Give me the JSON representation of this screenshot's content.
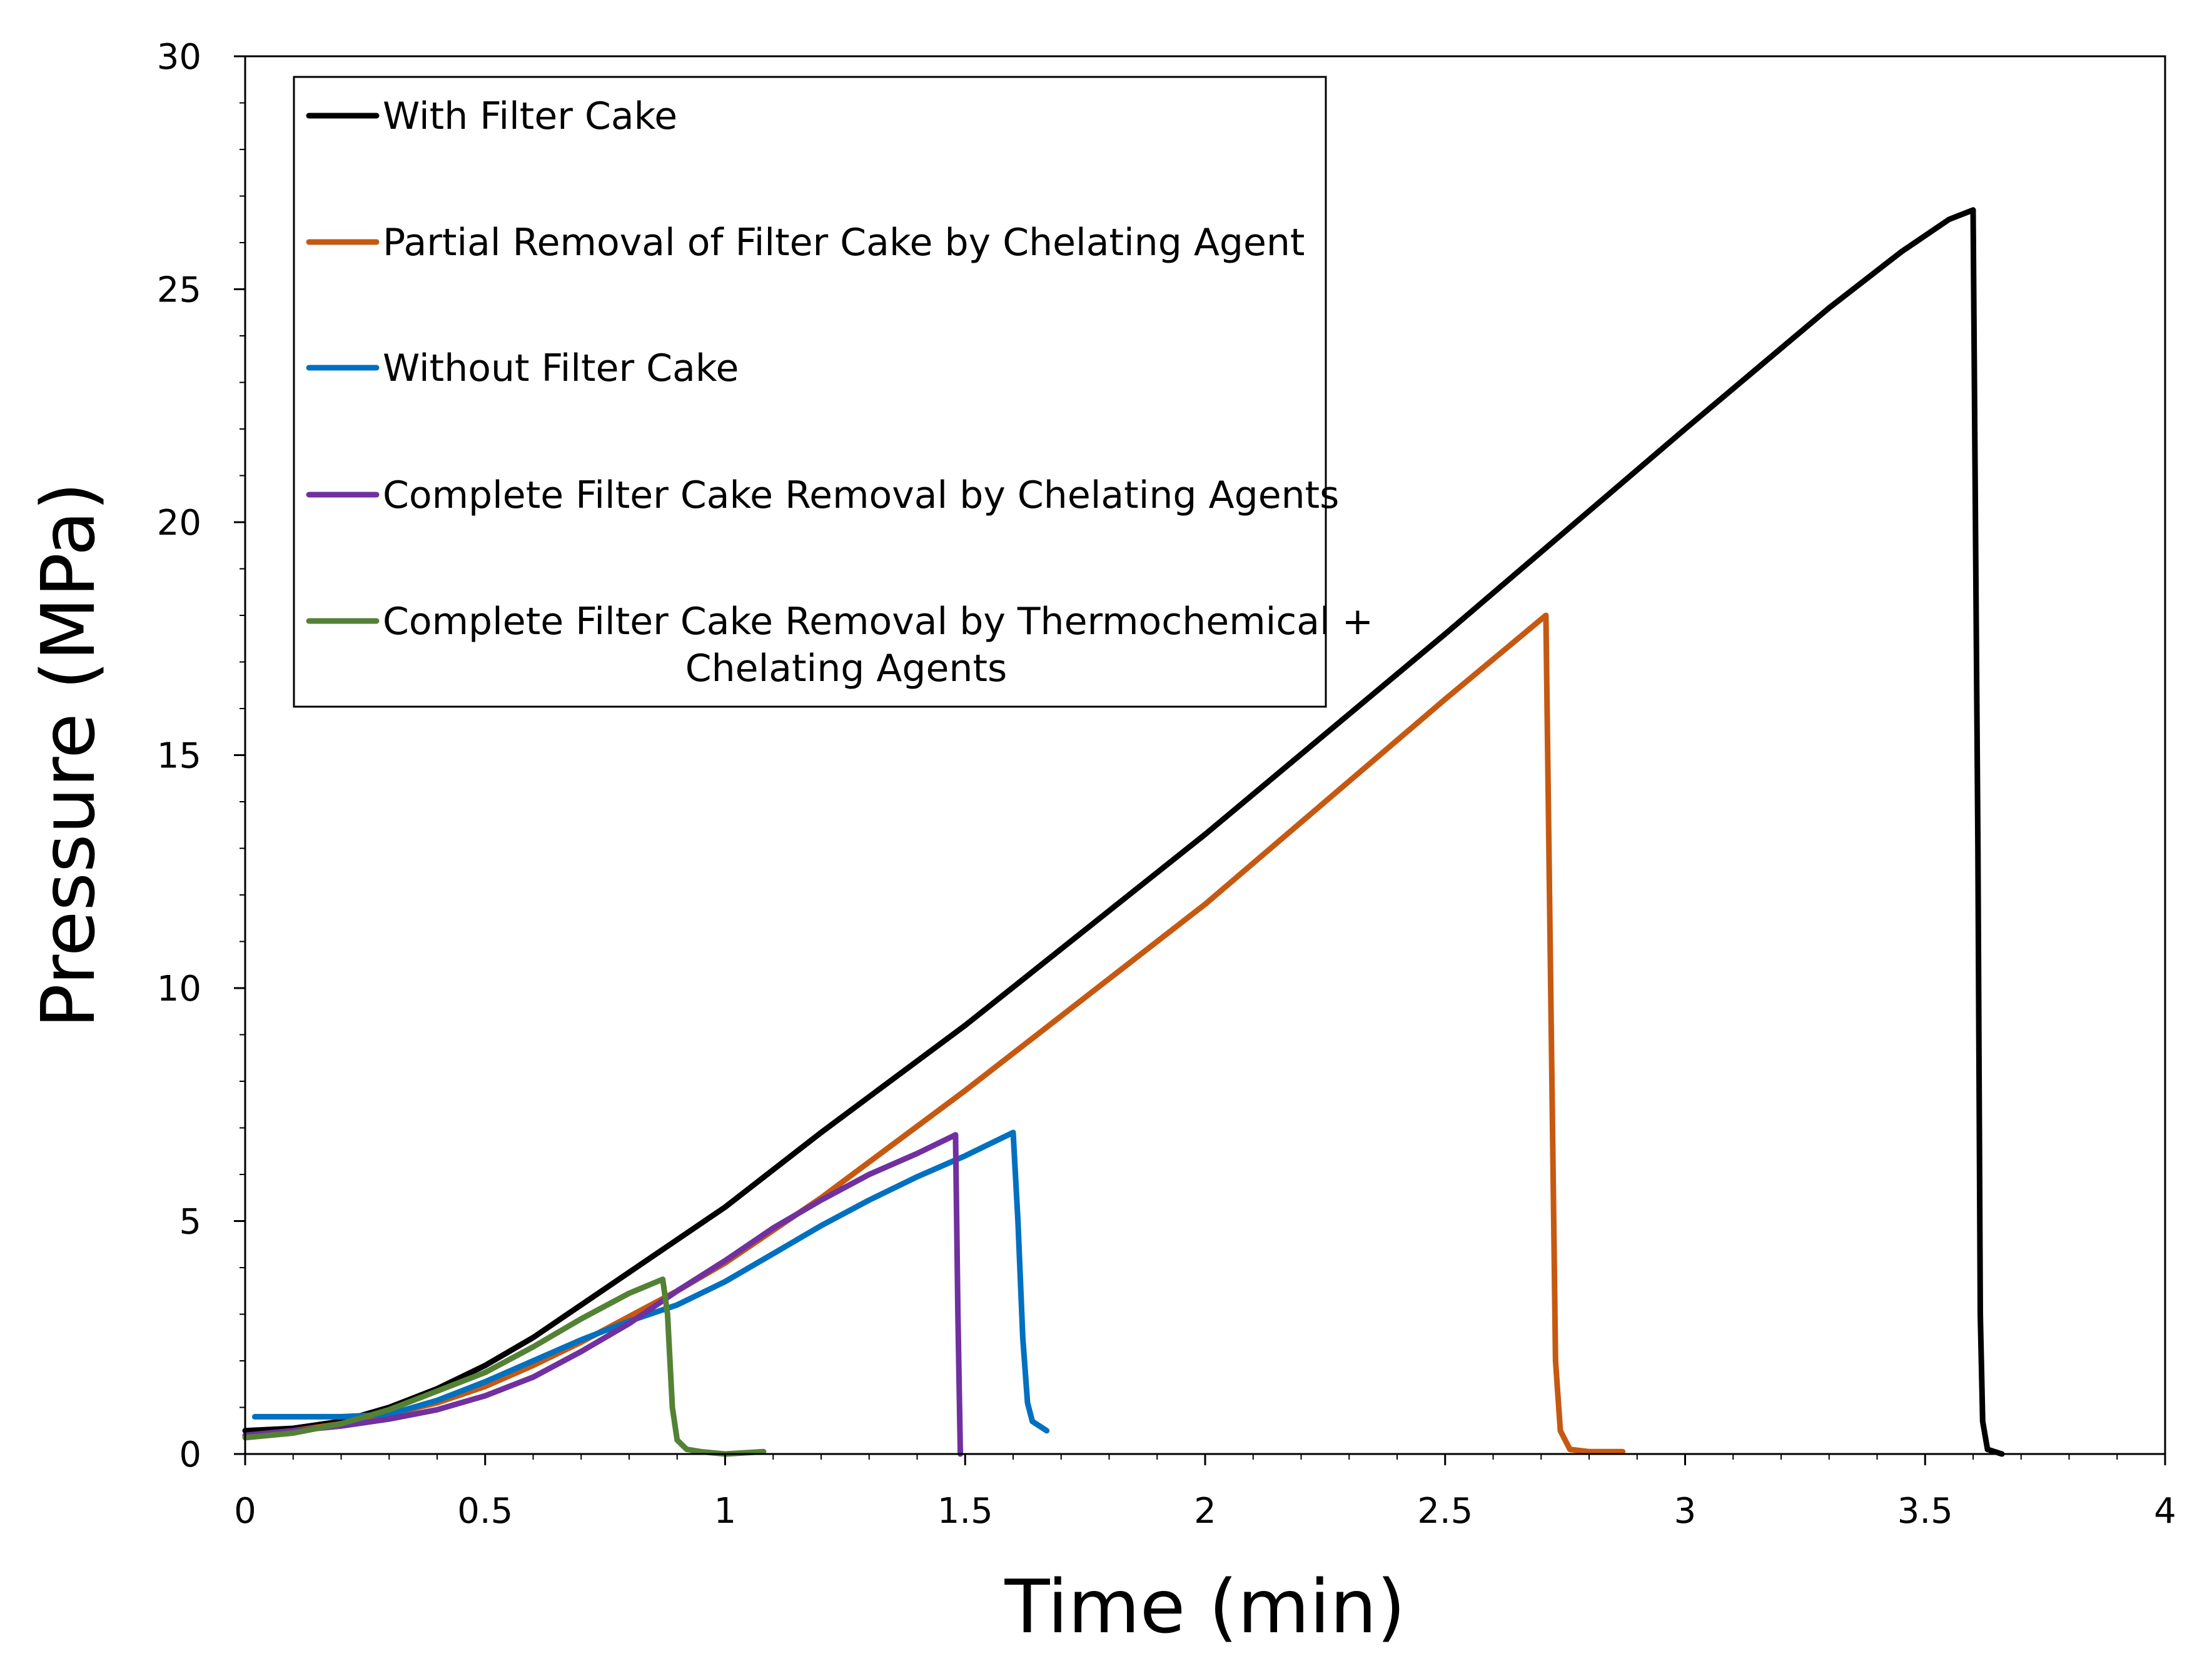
{
  "chart_data": {
    "type": "line",
    "title": "",
    "xlabel": "Time (min)",
    "ylabel": "Pressure (MPa)",
    "xlim": [
      0,
      4
    ],
    "ylim": [
      0,
      30
    ],
    "x_ticks": [
      0,
      0.5,
      1,
      1.5,
      2,
      2.5,
      3,
      3.5,
      4
    ],
    "x_tick_labels": [
      "0",
      "0.5",
      "1",
      "1.5",
      "2",
      "2.5",
      "3",
      "3.5",
      "4"
    ],
    "y_ticks": [
      0,
      5,
      10,
      15,
      20,
      25,
      30
    ],
    "y_tick_labels": [
      "0",
      "5",
      "10",
      "15",
      "20",
      "25",
      "30"
    ],
    "grid": false,
    "legend_position": "top-left",
    "series": [
      {
        "name": "With Filter Cake",
        "color": "#000000",
        "x": [
          0.0,
          0.1,
          0.2,
          0.3,
          0.4,
          0.5,
          0.6,
          0.7,
          0.8,
          0.9,
          1.0,
          1.2,
          1.5,
          2.0,
          2.5,
          3.0,
          3.3,
          3.45,
          3.55,
          3.6,
          3.61,
          3.615,
          3.62,
          3.63,
          3.66
        ],
        "y": [
          0.5,
          0.55,
          0.7,
          1.0,
          1.4,
          1.9,
          2.5,
          3.2,
          3.9,
          4.6,
          5.3,
          6.9,
          9.2,
          13.3,
          17.6,
          22.0,
          24.6,
          25.8,
          26.5,
          26.7,
          13.0,
          3.0,
          0.7,
          0.1,
          0.0
        ]
      },
      {
        "name": "Partial Removal of Filter Cake by Chelating Agent",
        "color": "#C65911",
        "x": [
          0.0,
          0.1,
          0.2,
          0.3,
          0.4,
          0.5,
          0.6,
          0.7,
          0.8,
          0.9,
          1.0,
          1.2,
          1.5,
          2.0,
          2.5,
          2.71,
          2.72,
          2.73,
          2.74,
          2.76,
          2.8,
          2.87
        ],
        "y": [
          0.4,
          0.5,
          0.65,
          0.85,
          1.1,
          1.45,
          1.9,
          2.4,
          2.95,
          3.5,
          4.1,
          5.5,
          7.8,
          11.8,
          16.2,
          18.0,
          10.0,
          2.0,
          0.5,
          0.1,
          0.05,
          0.05
        ]
      },
      {
        "name": "Without Filter Cake",
        "color": "#0070C0",
        "x": [
          0.02,
          0.1,
          0.2,
          0.3,
          0.4,
          0.5,
          0.6,
          0.7,
          0.8,
          0.9,
          1.0,
          1.1,
          1.2,
          1.3,
          1.4,
          1.5,
          1.6,
          1.61,
          1.62,
          1.63,
          1.64,
          1.67
        ],
        "y": [
          0.8,
          0.8,
          0.8,
          0.85,
          1.15,
          1.55,
          2.0,
          2.45,
          2.85,
          3.2,
          3.7,
          4.3,
          4.9,
          5.45,
          5.95,
          6.4,
          6.9,
          5.0,
          2.5,
          1.1,
          0.7,
          0.5
        ]
      },
      {
        "name": "Complete Filter Cake Removal by Chelating Agents",
        "color": "#7030A0",
        "x": [
          0.0,
          0.1,
          0.2,
          0.3,
          0.4,
          0.5,
          0.6,
          0.7,
          0.8,
          0.9,
          1.0,
          1.1,
          1.2,
          1.3,
          1.4,
          1.48,
          1.485,
          1.49
        ],
        "y": [
          0.4,
          0.5,
          0.6,
          0.75,
          0.95,
          1.25,
          1.65,
          2.2,
          2.8,
          3.5,
          4.15,
          4.85,
          5.45,
          6.0,
          6.45,
          6.85,
          3.0,
          0.0
        ]
      },
      {
        "name": "Complete Filter Cake Removal by Thermochemical + Chelating Agents",
        "color": "#548235",
        "x": [
          0.0,
          0.1,
          0.2,
          0.3,
          0.4,
          0.5,
          0.6,
          0.7,
          0.8,
          0.87,
          0.88,
          0.89,
          0.9,
          0.92,
          0.95,
          1.0,
          1.08
        ],
        "y": [
          0.35,
          0.45,
          0.65,
          0.95,
          1.35,
          1.75,
          2.3,
          2.9,
          3.45,
          3.75,
          3.0,
          1.0,
          0.3,
          0.1,
          0.05,
          0.0,
          0.05
        ]
      }
    ],
    "legend_entries": [
      {
        "lines": [
          "With Filter Cake"
        ]
      },
      {
        "lines": [
          "Partial Removal of Filter Cake by Chelating Agent"
        ]
      },
      {
        "lines": [
          "Without Filter Cake"
        ]
      },
      {
        "lines": [
          "Complete Filter Cake Removal by Chelating Agents"
        ]
      },
      {
        "lines": [
          "Complete Filter Cake Removal by Thermochemical +",
          "Chelating Agents"
        ]
      }
    ]
  }
}
